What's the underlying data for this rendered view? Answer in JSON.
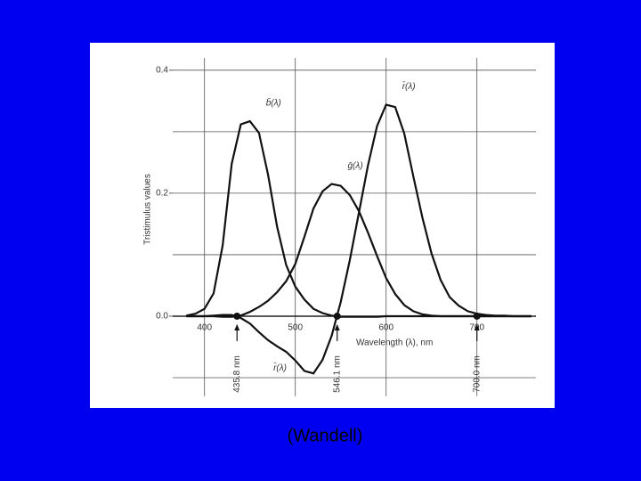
{
  "chart_data": {
    "type": "line",
    "y_label": "Tristimulus values",
    "x_label": "Wavelength (λ), nm",
    "x": [
      380,
      390,
      400,
      410,
      420,
      430,
      440,
      450,
      460,
      470,
      480,
      490,
      500,
      510,
      520,
      530,
      540,
      550,
      560,
      570,
      580,
      590,
      600,
      610,
      620,
      630,
      640,
      650,
      660,
      670,
      680,
      690,
      700,
      710,
      720,
      730,
      740,
      750,
      760
    ],
    "series": [
      {
        "name": "b̄(λ)",
        "color": "#111111",
        "values": [
          0.001,
          0.004,
          0.012,
          0.037,
          0.115,
          0.248,
          0.312,
          0.317,
          0.298,
          0.23,
          0.145,
          0.083,
          0.048,
          0.027,
          0.012,
          0.005,
          0.001,
          -0.001,
          -0.001,
          -0.001,
          -0.001,
          -0.001,
          0,
          0,
          0,
          0,
          0,
          0,
          0,
          0,
          0,
          0,
          0,
          0,
          0,
          0,
          0,
          0,
          0
        ]
      },
      {
        "name": "ḡ(λ)",
        "color": "#111111",
        "values": [
          0,
          0,
          0,
          0,
          -0.001,
          -0.001,
          0.001,
          0.007,
          0.015,
          0.025,
          0.039,
          0.057,
          0.085,
          0.129,
          0.175,
          0.203,
          0.215,
          0.212,
          0.197,
          0.171,
          0.136,
          0.098,
          0.062,
          0.036,
          0.018,
          0.008,
          0.003,
          0.001,
          0,
          0,
          0,
          0,
          0,
          0,
          0,
          0,
          0,
          0,
          0
        ]
      },
      {
        "name": "r̄(λ)",
        "color": "#111111",
        "values": [
          0,
          0,
          0,
          0.001,
          0.002,
          0.002,
          -0.003,
          -0.012,
          -0.026,
          -0.039,
          -0.049,
          -0.058,
          -0.072,
          -0.089,
          -0.093,
          -0.071,
          -0.032,
          0.023,
          0.091,
          0.168,
          0.245,
          0.309,
          0.344,
          0.34,
          0.297,
          0.227,
          0.16,
          0.102,
          0.059,
          0.031,
          0.017,
          0.008,
          0.004,
          0.002,
          0.001,
          0.001,
          0,
          0,
          0
        ]
      }
    ],
    "xlim": [
      365,
      765
    ],
    "ylim": [
      -0.13,
      0.42
    ],
    "xticks": [
      400,
      500,
      600,
      700
    ],
    "yticks": [
      {
        "value": 0,
        "label": "0.0"
      },
      {
        "value": 0.2,
        "label": "0.2"
      },
      {
        "value": 0.4,
        "label": "0.4"
      }
    ],
    "ygrid": [
      -0.1,
      0,
      0.1,
      0.2,
      0.3,
      0.4
    ],
    "grid": true,
    "markers": [
      {
        "x": 435.8,
        "label": "435.8 nm"
      },
      {
        "x": 546.1,
        "label": "546.1 nm"
      },
      {
        "x": 700.0,
        "label": "700.0 nm"
      }
    ]
  },
  "caption": "(Wandell)"
}
